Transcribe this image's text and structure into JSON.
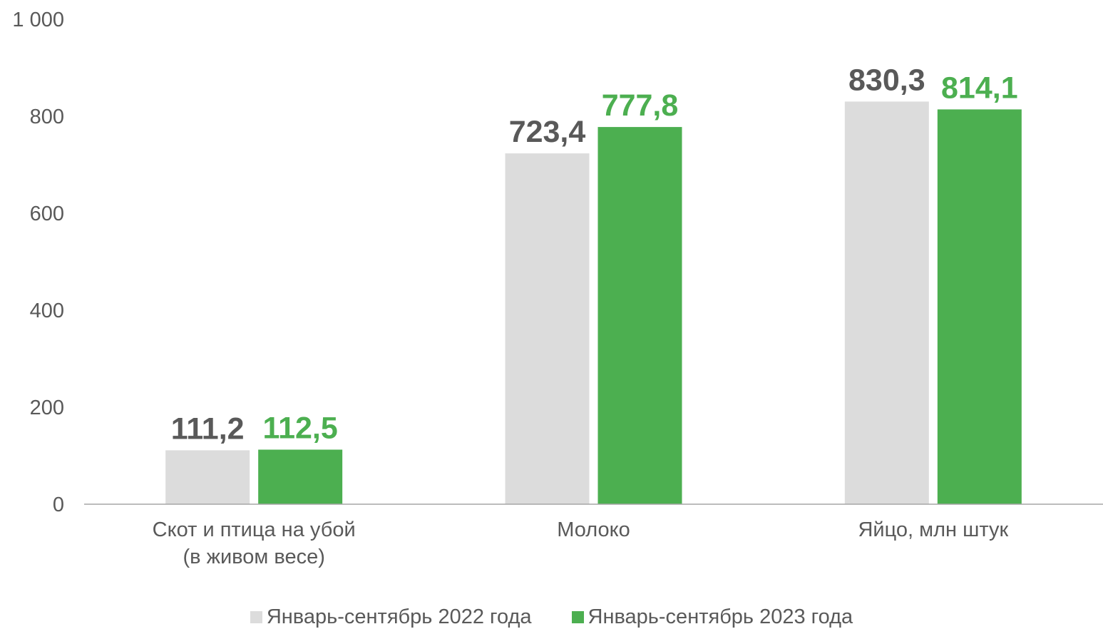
{
  "chart_data": {
    "type": "bar",
    "categories": [
      [
        "Скот и птица на убой",
        "(в живом весе)"
      ],
      [
        "Молоко"
      ],
      [
        "Яйцо, млн штук"
      ]
    ],
    "series": [
      {
        "name": "Январь-сентябрь 2022 года",
        "values": [
          111.2,
          723.4,
          830.3
        ],
        "labels": [
          "111,2",
          "723,4",
          "830,3"
        ],
        "color": "#dcdcdc",
        "label_color": "#595959"
      },
      {
        "name": "Январь-сентябрь 2023 года",
        "values": [
          112.5,
          777.8,
          814.1
        ],
        "labels": [
          "112,5",
          "777,8",
          "814,1"
        ],
        "color": "#4caf50",
        "label_color": "#4caf50"
      }
    ],
    "y_ticks": [
      0,
      200,
      400,
      600,
      800,
      1000
    ],
    "y_tick_labels": [
      "0",
      "200",
      "400",
      "600",
      "800",
      "1 000"
    ],
    "ylim": [
      0,
      1000
    ],
    "grid": false,
    "legend_position": "bottom",
    "axis_color": "#a6a6a6"
  }
}
